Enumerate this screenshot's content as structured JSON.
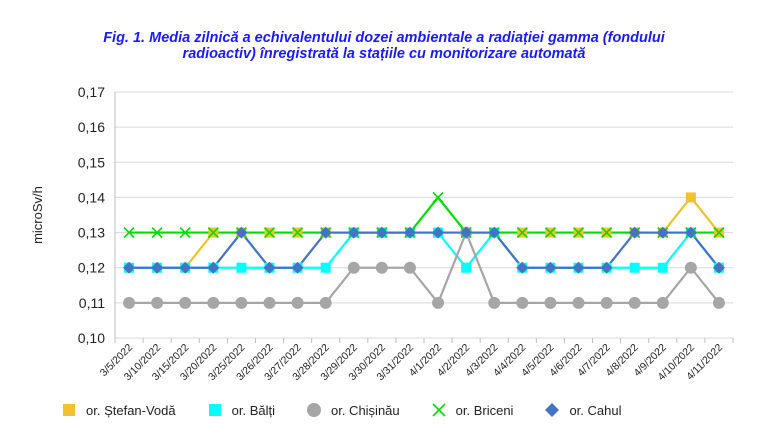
{
  "chart_data": {
    "type": "line",
    "title_lines": [
      "Fig. 1. Media zilnică a echivalentului dozei ambientale a radiației gamma (fondului",
      "radioactiv) înregistrată la stațiile cu monitorizare automată"
    ],
    "ylabel": "microSv/h",
    "ylim": [
      0.1,
      0.17
    ],
    "yticks": [
      "0,10",
      "0,11",
      "0,12",
      "0,13",
      "0,14",
      "0,15",
      "0,16",
      "0,17"
    ],
    "categories": [
      "3/5/2022",
      "3/10/2022",
      "3/15/2022",
      "3/20/2022",
      "3/25/2022",
      "3/26/2022",
      "3/27/2022",
      "3/28/2022",
      "3/29/2022",
      "3/30/2022",
      "3/31/2022",
      "4/1/2022",
      "4/2/2022",
      "4/3/2022",
      "4/4/2022",
      "4/5/2022",
      "4/6/2022",
      "4/7/2022",
      "4/8/2022",
      "4/9/2022",
      "4/10/2022",
      "4/11/2022"
    ],
    "grid": true,
    "legend_position": "bottom",
    "series": [
      {
        "name": "or. Ștefan-Vodă",
        "color": "#f2c12e",
        "marker": "square",
        "values": [
          0.12,
          0.12,
          0.12,
          0.13,
          0.13,
          0.13,
          0.13,
          0.13,
          0.13,
          0.13,
          0.13,
          0.13,
          0.13,
          0.13,
          0.13,
          0.13,
          0.13,
          0.13,
          0.13,
          0.13,
          0.14,
          0.13
        ]
      },
      {
        "name": "or. Bălți",
        "color": "#00ffff",
        "marker": "square",
        "values": [
          0.12,
          0.12,
          0.12,
          0.12,
          0.12,
          0.12,
          0.12,
          0.12,
          0.13,
          0.13,
          0.13,
          0.13,
          0.12,
          0.13,
          0.12,
          0.12,
          0.12,
          0.12,
          0.12,
          0.12,
          0.13,
          0.12
        ]
      },
      {
        "name": "or. Chișinău",
        "color": "#a6a6a6",
        "marker": "circle",
        "values": [
          0.11,
          0.11,
          0.11,
          0.11,
          0.11,
          0.11,
          0.11,
          0.11,
          0.12,
          0.12,
          0.12,
          0.11,
          0.13,
          0.11,
          0.11,
          0.11,
          0.11,
          0.11,
          0.11,
          0.11,
          0.12,
          0.11
        ]
      },
      {
        "name": "or. Briceni",
        "color": "#00dd00",
        "marker": "x",
        "values": [
          0.13,
          0.13,
          0.13,
          0.13,
          0.13,
          0.13,
          0.13,
          0.13,
          0.13,
          0.13,
          0.13,
          0.14,
          0.13,
          0.13,
          0.13,
          0.13,
          0.13,
          0.13,
          0.13,
          0.13,
          0.13,
          0.13
        ]
      },
      {
        "name": "or. Cahul",
        "color": "#4472c4",
        "marker": "diamond",
        "values": [
          0.12,
          0.12,
          0.12,
          0.12,
          0.13,
          0.12,
          0.12,
          0.13,
          0.13,
          0.13,
          0.13,
          0.13,
          0.13,
          0.13,
          0.12,
          0.12,
          0.12,
          0.12,
          0.13,
          0.13,
          0.13,
          0.12
        ]
      }
    ]
  }
}
